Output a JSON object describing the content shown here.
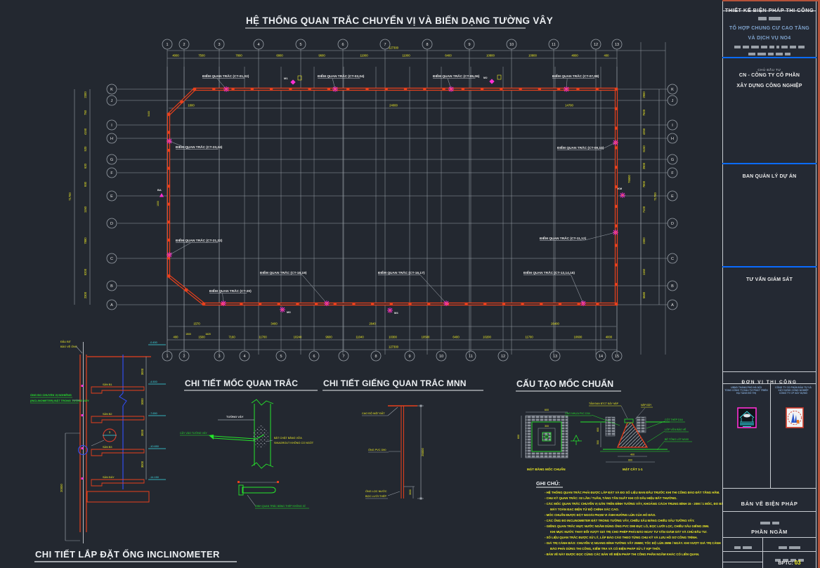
{
  "colors": {
    "bg": "#232830",
    "grid": "#99a0a8",
    "wall": "#e8401c",
    "dim_text": "#f2ef25",
    "white": "#e9e9e9",
    "magenta": "#ff2fd4",
    "green": "#25e62b",
    "cyan": "#3ddfe8",
    "blue": "#3350ff",
    "divider_blue": "#0a6bff",
    "steel_blue": "#7fa3cd",
    "sheet_red": "#b4523a"
  },
  "main_title": "HỆ THỐNG QUAN TRẮC CHUYỂN VỊ VÀ BIẾN DẠNG TƯỜNG VÂY",
  "plan": {
    "axis_top_labels": [
      "1",
      "2",
      "3",
      "4",
      "5",
      "6",
      "7",
      "8",
      "9",
      "10",
      "11",
      "12",
      "13"
    ],
    "axis_bottom_labels": [
      "1",
      "2",
      "3",
      "4",
      "5",
      "6",
      "7",
      "8",
      "9",
      "10",
      "11",
      "12",
      "13",
      "14",
      "15"
    ],
    "axis_left_labels": [
      "K",
      "J",
      "I",
      "H",
      "G",
      "F",
      "E",
      "D",
      "C",
      "B",
      "A"
    ],
    "axis_right_labels": [
      "K",
      "J",
      "I",
      "H",
      "G",
      "F",
      "E",
      "D",
      "C",
      "B",
      "A"
    ],
    "top_dims": [
      "4000",
      "7500",
      "7800",
      "6800",
      "9600",
      "11000",
      "11000",
      "6400",
      "10800",
      "10800",
      "4800",
      "400"
    ],
    "top_total": "127300",
    "bottom_dims": [
      "400",
      "1500",
      "7160",
      "11700",
      "10240",
      "9600",
      "11040",
      "10300",
      "10500",
      "6400",
      "10200",
      "11700",
      "10600",
      "4000"
    ],
    "bottom_total": "127300",
    "bottom_sub_dims": [
      "1570",
      "3400",
      "2640",
      "26400"
    ],
    "bottom_sub_dims2": [
      "1500",
      "1620"
    ],
    "left_dims": [
      "2300",
      "750",
      "4150",
      "520",
      "620",
      "930",
      "1150",
      "7880",
      "5200",
      "2300"
    ],
    "left_total": "71700",
    "right_dims": [
      "2900",
      "7500",
      "4250",
      "5150",
      "2900",
      "7800",
      "7100",
      "2300",
      "1150",
      "5680"
    ],
    "right_total": "71700",
    "inner_top_dims": [
      "1800",
      "24000",
      "14700"
    ],
    "inner_right_dim": "76500",
    "inner_left_dims": [
      "5400",
      "1000"
    ],
    "point_labels": [
      "ĐIỂM QUAN TRẮC (CT-01,02)",
      "ĐIỂM QUAN TRẮC (CT-03,04)",
      "ĐIỂM QUAN TRẮC (CT-05,06)",
      "ĐIỂM QUAN TRẮC (CT-07,08)",
      "ĐIỂM QUAN TRẮC (CT-23,24)",
      "ĐIỂM QUAN TRẮC (CT-21,22)",
      "ĐIỂM QUAN TRẮC (CT-09,10)",
      "ĐIỂM QUAN TRẮC (CT-11,12)",
      "ĐIỂM QUAN TRẮC (CT-20)",
      "ĐIỂM QUAN TRẮC (CT-18,19)",
      "ĐIỂM QUAN TRẮC (CT-16,17)",
      "ĐIỂM QUAN TRẮC (CT-13,14,15)"
    ],
    "marker_tags": [
      "M1",
      "M2",
      "BA",
      "KM",
      "M3",
      "M4"
    ]
  },
  "details": {
    "inclinometer": {
      "title": "CHI TIẾT LẮP ĐẶT ỐNG INCLINOMETER",
      "top_label1": "ĐẦU BỊT",
      "top_label2": "BẢO VỆ ỐNG",
      "left_label1": "ỐNG ĐO CHUYỂN VỊ NGHIÊNG",
      "left_label2": "(INCLINOMETER) ĐẶT TRONG TƯỜNG VÂY",
      "slabs": [
        "SÀN B1",
        "SÀN B2",
        "SÀN B3",
        "SÀN ĐÁY"
      ],
      "elevations": [
        "-0.450",
        "-4.500",
        "-7.650",
        "-10.650",
        "-14.150"
      ],
      "span_dims": [
        "3000",
        "3000",
        "3000",
        "3000"
      ],
      "depth_dim": "20000",
      "callout_no": "1"
    },
    "moc_quan_trac": {
      "title": "CHI TIẾT MỐC QUAN TRẮC",
      "wall_label": "TƯỜNG VÂY",
      "left_label": "CẤY VÀO TƯỜNG VÂY",
      "right_label1": "BẮT CHẶT BẰNG VỮA",
      "right_label2": "SIKAGROUT KHÔNG CO NGÓT",
      "pin_label": "ĐINH QUAN TRẮC BẰNG THÉP KHÔNG GỈ"
    },
    "gieng": {
      "title": "CHI TIẾT GIẾNG QUAN TRẮC MNN",
      "label_ground": "CAO ĐỘ MẶT ĐẤT",
      "label_pipe": "ỐNG PVC D90",
      "label_filter1": "ỐNG LỌC NƯỚC",
      "label_filter2": "BỌC LƯỚI THÉP",
      "depth_dim": "25000",
      "filter_dim": "3000"
    },
    "moc_chuan": {
      "title": "CẤU TẠO MỐC CHUẨN",
      "plan_caption": "MẶT BẰNG MỐC CHUẨN",
      "section_caption": "MẶT CẮT 1-1",
      "label_tam_dan": "TẤM ĐAN BTCT ĐẬY NẮP",
      "label_nap": "NẮP ĐẬY",
      "label_ong": "ỐNG NHỰA PVC D34",
      "label_thep": "CỐT THÉP D16",
      "label_vua": "LỚP VỮA BẢO VỆ",
      "label_betong": "BÊ TÔNG LÓT M100",
      "dim_600a": "600",
      "dim_600b": "600",
      "dim_300": "300",
      "dim_600c": "600",
      "dim_500": "500",
      "dim_400": "400",
      "dim_600d": "600"
    }
  },
  "notes": {
    "header": "GHI CHÚ:",
    "lines": [
      "- HỆ THỐNG QUAN TRẮC PHẢI ĐƯỢC LẮP ĐẶT VÀ ĐO SỐ LIỆU BAN ĐẦU TRƯỚC KHI THI CÔNG ĐÀO ĐẤT TẦNG HẦM.",
      "- CHU KỲ QUAN TRẮC: 02 LẦN / TUẦN, TĂNG TẦN SUẤT KHI CÓ DẤU HIỆU BẤT THƯỜNG.",
      "- CÁC MỐC QUAN TRẮC CHUYỂN VỊ GẮN TRÊN ĐỈNH TƯỜNG VÂY, KHOẢNG CÁCH TRUNG BÌNH 15 - 20M / 1 MỐC, ĐO BẰNG",
      "  MÁY TOÀN ĐẠC ĐIỆN TỬ ĐỘ CHÍNH XÁC CAO.",
      "- MỐC CHUẨN ĐƯỢC ĐẶT NGOÀI PHẠM VI ẢNH HƯỞNG LÚN CỦA HỐ ĐÀO.",
      "- CÁC ỐNG ĐO INCLINOMETER ĐẶT TRONG TƯỜNG VÂY, CHIỀU SÂU BẰNG CHIỀU SÂU TƯỜNG VÂY.",
      "- GIẾNG QUAN TRẮC MỰC NƯỚC NGẦM DÙNG ỐNG PVC D90 ĐỤC LỖ, BỌC LƯỚI LỌC, CHIỀU SÂU GIẾNG 25M.",
      "  KHI MỰC NƯỚC THAY ĐỔI VƯỢT GIÁ TRỊ CHO PHÉP PHẢI BÁO NGAY TƯ VẤN GIÁM SÁT VÀ CHỦ ĐẦU TƯ.",
      "- SỐ LIỆU QUAN TRẮC ĐƯỢC XỬ LÝ, LẬP BÁO CÁO THEO TỪNG CHU KỲ VÀ LƯU HỒ SƠ CÔNG TRÌNH.",
      "- GIÁ TRỊ CẢNH BÁO: CHUYỂN VỊ NGANG ĐỈNH TƯỜNG VÂY 25MM; TỐC ĐỘ LÚN 2MM / NGÀY. KHI VƯỢT GIÁ TRỊ CẢNH",
      "  BÁO PHẢI DỪNG THI CÔNG, KIỂM TRA VÀ CÓ BIỆN PHÁP XỬ LÝ KỊP THỜI.",
      "- BẢN VẼ NÀY ĐƯỢC ĐỌC CÙNG CÁC BẢN VẼ BIỆN PHÁP THI CÔNG PHẦN NGẦM KHÁC CÓ LIÊN QUAN."
    ]
  },
  "titleblock": {
    "header": "THIẾT KẾ BIỆN PHÁP THI CÔNG",
    "project_line1": "TỔ HỢP CHUNG CƯ CAO TẦNG",
    "project_line2": "VÀ DỊCH VỤ NO4",
    "investor_label": "CHỦ ĐẦU TƯ",
    "investor_line1": "CN - CÔNG TY CỔ PHẦN",
    "investor_line2": "XÂY DỰNG CÔNG NGHIỆP",
    "pmb": "BAN QUẢN LÝ DỰ ÁN",
    "supervisor": "TƯ VẤN GIÁM SÁT",
    "contractor_label": "ĐƠN VỊ THI CÔNG",
    "contractor_left": [
      "UBND THÀNH PHỐ HÀ NỘI",
      "TỔNG CÔNG TY ĐẦU TƯ PHÁT TRIỂN",
      "HẠ TẦNG ĐÔ THỊ"
    ],
    "contractor_right": [
      "CÔNG TY CỔ PHẦN ĐẦU TƯ VÀ",
      "XÂY DỰNG CÔNG NGHIỆP",
      "CÔNG TY CP XÂY DỰNG"
    ],
    "drawing_type": "BẢN VẼ BIỆN PHÁP",
    "phase": "PHẦN NGẦM",
    "sheet_label": "BPTC:",
    "sheet_no": "03"
  }
}
